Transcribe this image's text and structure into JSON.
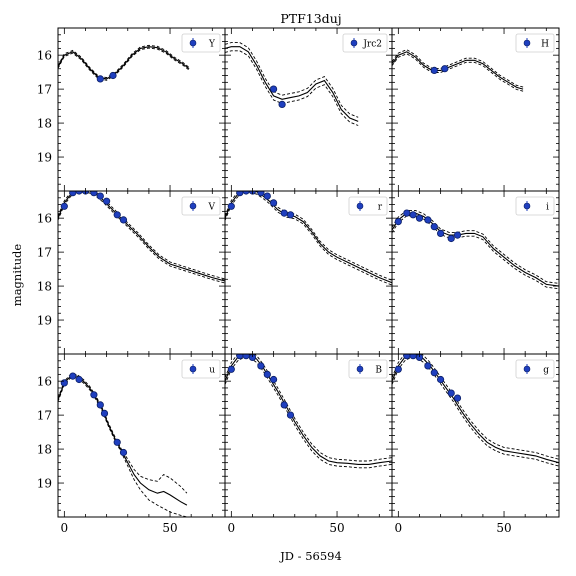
{
  "figure": {
    "title": "PTF13duj",
    "xlabel": "JD - 56594",
    "ylabel": "magnitude",
    "xticks": [
      "0",
      "50"
    ],
    "yticks": [
      "16",
      "17",
      "18",
      "19"
    ]
  },
  "chart_data": {
    "type": "scatter",
    "title": "PTF13duj",
    "xlabel": "JD - 56594",
    "ylabel": "magnitude",
    "xlim": [
      -3,
      76
    ],
    "ylim": [
      20.0,
      15.2
    ],
    "y_inverted": true,
    "marker_color": "#1f3fbf",
    "panels": [
      {
        "name": "Y",
        "points": [
          [
            17,
            16.7
          ],
          [
            23,
            16.6
          ]
        ],
        "model": [
          [
            -3,
            16.35
          ],
          [
            0,
            16.0
          ],
          [
            4,
            15.9
          ],
          [
            8,
            16.1
          ],
          [
            12,
            16.4
          ],
          [
            16,
            16.65
          ],
          [
            20,
            16.7
          ],
          [
            24,
            16.55
          ],
          [
            28,
            16.3
          ],
          [
            32,
            16.0
          ],
          [
            36,
            15.8
          ],
          [
            40,
            15.75
          ],
          [
            44,
            15.78
          ],
          [
            48,
            15.9
          ],
          [
            52,
            16.1
          ],
          [
            56,
            16.25
          ],
          [
            59,
            16.4
          ]
        ],
        "band": 0.04
      },
      {
        "name": "Jrc2",
        "points": [
          [
            20,
            17.0
          ],
          [
            24,
            17.45
          ]
        ],
        "model": [
          [
            -3,
            15.8
          ],
          [
            0,
            15.75
          ],
          [
            4,
            15.75
          ],
          [
            8,
            15.9
          ],
          [
            12,
            16.3
          ],
          [
            16,
            16.8
          ],
          [
            20,
            17.2
          ],
          [
            24,
            17.3
          ],
          [
            28,
            17.25
          ],
          [
            32,
            17.2
          ],
          [
            36,
            17.1
          ],
          [
            40,
            16.85
          ],
          [
            44,
            16.75
          ],
          [
            48,
            17.1
          ],
          [
            52,
            17.6
          ],
          [
            56,
            17.85
          ],
          [
            60,
            17.95
          ]
        ],
        "band": 0.12
      },
      {
        "name": "H",
        "points": [
          [
            17,
            16.45
          ],
          [
            22,
            16.4
          ]
        ],
        "model": [
          [
            -3,
            16.25
          ],
          [
            0,
            16.0
          ],
          [
            4,
            15.9
          ],
          [
            8,
            16.05
          ],
          [
            12,
            16.3
          ],
          [
            16,
            16.45
          ],
          [
            20,
            16.45
          ],
          [
            24,
            16.35
          ],
          [
            28,
            16.25
          ],
          [
            32,
            16.15
          ],
          [
            36,
            16.15
          ],
          [
            40,
            16.25
          ],
          [
            44,
            16.45
          ],
          [
            48,
            16.65
          ],
          [
            52,
            16.8
          ],
          [
            56,
            16.95
          ],
          [
            59,
            17.0
          ]
        ],
        "band": 0.06
      },
      {
        "name": "V",
        "points": [
          [
            0,
            15.65
          ],
          [
            4,
            15.25
          ],
          [
            7,
            15.2
          ],
          [
            10,
            15.2
          ],
          [
            14,
            15.25
          ],
          [
            17,
            15.35
          ],
          [
            20,
            15.5
          ],
          [
            25,
            15.9
          ],
          [
            28,
            16.05
          ]
        ],
        "model": [
          [
            -3,
            16.0
          ],
          [
            0,
            15.55
          ],
          [
            3,
            15.3
          ],
          [
            6,
            15.2
          ],
          [
            9,
            15.18
          ],
          [
            12,
            15.2
          ],
          [
            15,
            15.3
          ],
          [
            18,
            15.45
          ],
          [
            22,
            15.7
          ],
          [
            26,
            15.95
          ],
          [
            30,
            16.2
          ],
          [
            35,
            16.5
          ],
          [
            40,
            16.85
          ],
          [
            45,
            17.15
          ],
          [
            50,
            17.35
          ],
          [
            55,
            17.45
          ],
          [
            60,
            17.55
          ],
          [
            65,
            17.65
          ],
          [
            70,
            17.75
          ],
          [
            76,
            17.85
          ]
        ],
        "band": 0.06
      },
      {
        "name": "r",
        "points": [
          [
            0,
            15.65
          ],
          [
            4,
            15.25
          ],
          [
            7,
            15.2
          ],
          [
            10,
            15.2
          ],
          [
            14,
            15.25
          ],
          [
            17,
            15.35
          ],
          [
            20,
            15.55
          ],
          [
            25,
            15.85
          ],
          [
            28,
            15.9
          ]
        ],
        "model": [
          [
            -3,
            16.0
          ],
          [
            0,
            15.55
          ],
          [
            3,
            15.3
          ],
          [
            6,
            15.2
          ],
          [
            9,
            15.18
          ],
          [
            12,
            15.22
          ],
          [
            15,
            15.35
          ],
          [
            18,
            15.5
          ],
          [
            22,
            15.75
          ],
          [
            26,
            15.9
          ],
          [
            30,
            15.95
          ],
          [
            34,
            16.1
          ],
          [
            38,
            16.4
          ],
          [
            42,
            16.75
          ],
          [
            46,
            17.0
          ],
          [
            50,
            17.15
          ],
          [
            55,
            17.3
          ],
          [
            60,
            17.45
          ],
          [
            65,
            17.6
          ],
          [
            70,
            17.75
          ],
          [
            76,
            17.9
          ]
        ],
        "band": 0.07
      },
      {
        "name": "i",
        "points": [
          [
            0,
            16.1
          ],
          [
            4,
            15.85
          ],
          [
            7,
            15.9
          ],
          [
            10,
            16.0
          ],
          [
            14,
            16.05
          ],
          [
            17,
            16.25
          ],
          [
            20,
            16.45
          ],
          [
            25,
            16.6
          ],
          [
            28,
            16.5
          ]
        ],
        "model": [
          [
            -3,
            16.35
          ],
          [
            0,
            16.05
          ],
          [
            4,
            15.85
          ],
          [
            8,
            15.85
          ],
          [
            12,
            15.95
          ],
          [
            16,
            16.15
          ],
          [
            20,
            16.4
          ],
          [
            24,
            16.5
          ],
          [
            28,
            16.5
          ],
          [
            32,
            16.45
          ],
          [
            36,
            16.45
          ],
          [
            40,
            16.55
          ],
          [
            45,
            16.9
          ],
          [
            50,
            17.15
          ],
          [
            55,
            17.4
          ],
          [
            60,
            17.6
          ],
          [
            65,
            17.75
          ],
          [
            70,
            17.95
          ],
          [
            76,
            18.0
          ]
        ],
        "band": 0.08
      },
      {
        "name": "u",
        "points": [
          [
            0,
            16.05
          ],
          [
            4,
            15.85
          ],
          [
            7,
            15.95
          ],
          [
            14,
            16.4
          ],
          [
            17,
            16.7
          ],
          [
            19,
            16.95
          ],
          [
            25,
            17.8
          ],
          [
            28,
            18.1
          ]
        ],
        "model": [
          [
            -3,
            16.55
          ],
          [
            0,
            16.05
          ],
          [
            3,
            15.85
          ],
          [
            6,
            15.85
          ],
          [
            9,
            16.0
          ],
          [
            12,
            16.2
          ],
          [
            15,
            16.5
          ],
          [
            18,
            16.85
          ],
          [
            21,
            17.3
          ],
          [
            24,
            17.7
          ],
          [
            27,
            18.05
          ],
          [
            30,
            18.4
          ],
          [
            33,
            18.75
          ],
          [
            36,
            19.0
          ],
          [
            40,
            19.2
          ],
          [
            44,
            19.3
          ],
          [
            47,
            19.25
          ],
          [
            50,
            19.35
          ],
          [
            55,
            19.55
          ],
          [
            58,
            19.65
          ]
        ],
        "band_upper": [
          [
            -3,
            16.5
          ],
          [
            0,
            16.0
          ],
          [
            3,
            15.8
          ],
          [
            6,
            15.8
          ],
          [
            9,
            15.95
          ],
          [
            12,
            16.15
          ],
          [
            15,
            16.45
          ],
          [
            18,
            16.8
          ],
          [
            21,
            17.25
          ],
          [
            24,
            17.65
          ],
          [
            27,
            18.0
          ],
          [
            30,
            18.3
          ],
          [
            33,
            18.6
          ],
          [
            36,
            18.8
          ],
          [
            40,
            18.9
          ],
          [
            44,
            18.95
          ],
          [
            47,
            18.75
          ],
          [
            50,
            18.85
          ],
          [
            55,
            19.1
          ],
          [
            58,
            19.3
          ]
        ],
        "band_lower": [
          [
            -3,
            16.6
          ],
          [
            0,
            16.1
          ],
          [
            3,
            15.9
          ],
          [
            6,
            15.9
          ],
          [
            9,
            16.05
          ],
          [
            12,
            16.25
          ],
          [
            15,
            16.55
          ],
          [
            18,
            16.9
          ],
          [
            21,
            17.35
          ],
          [
            24,
            17.75
          ],
          [
            27,
            18.1
          ],
          [
            30,
            18.5
          ],
          [
            33,
            18.9
          ],
          [
            36,
            19.2
          ],
          [
            40,
            19.5
          ],
          [
            44,
            19.65
          ],
          [
            47,
            19.75
          ],
          [
            50,
            19.85
          ],
          [
            55,
            19.95
          ],
          [
            58,
            20.0
          ]
        ]
      },
      {
        "name": "B",
        "points": [
          [
            0,
            15.65
          ],
          [
            4,
            15.25
          ],
          [
            7,
            15.25
          ],
          [
            10,
            15.3
          ],
          [
            14,
            15.55
          ],
          [
            17,
            15.8
          ],
          [
            20,
            15.95
          ],
          [
            25,
            16.7
          ],
          [
            28,
            17.0
          ]
        ],
        "model": [
          [
            -3,
            16.0
          ],
          [
            0,
            15.55
          ],
          [
            3,
            15.3
          ],
          [
            6,
            15.2
          ],
          [
            9,
            15.22
          ],
          [
            12,
            15.35
          ],
          [
            15,
            15.6
          ],
          [
            18,
            15.9
          ],
          [
            22,
            16.3
          ],
          [
            26,
            16.75
          ],
          [
            30,
            17.2
          ],
          [
            34,
            17.6
          ],
          [
            38,
            17.95
          ],
          [
            42,
            18.2
          ],
          [
            46,
            18.35
          ],
          [
            50,
            18.4
          ],
          [
            55,
            18.42
          ],
          [
            60,
            18.45
          ],
          [
            65,
            18.45
          ],
          [
            70,
            18.4
          ],
          [
            76,
            18.35
          ]
        ],
        "band": 0.1
      },
      {
        "name": "g",
        "points": [
          [
            0,
            15.65
          ],
          [
            4,
            15.25
          ],
          [
            7,
            15.25
          ],
          [
            10,
            15.3
          ],
          [
            14,
            15.55
          ],
          [
            17,
            15.75
          ],
          [
            20,
            15.95
          ],
          [
            25,
            16.35
          ],
          [
            28,
            16.5
          ]
        ],
        "model": [
          [
            -3,
            16.0
          ],
          [
            0,
            15.55
          ],
          [
            3,
            15.3
          ],
          [
            6,
            15.2
          ],
          [
            9,
            15.22
          ],
          [
            12,
            15.35
          ],
          [
            15,
            15.55
          ],
          [
            18,
            15.8
          ],
          [
            22,
            16.15
          ],
          [
            26,
            16.5
          ],
          [
            30,
            16.9
          ],
          [
            34,
            17.25
          ],
          [
            38,
            17.55
          ],
          [
            42,
            17.8
          ],
          [
            46,
            17.95
          ],
          [
            50,
            18.05
          ],
          [
            55,
            18.1
          ],
          [
            60,
            18.15
          ],
          [
            65,
            18.2
          ],
          [
            70,
            18.3
          ],
          [
            76,
            18.4
          ]
        ],
        "band": 0.1
      }
    ]
  }
}
